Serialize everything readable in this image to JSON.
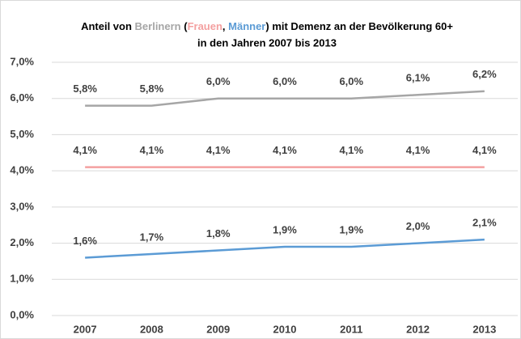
{
  "chart_data": {
    "type": "line",
    "title": [
      {
        "text": "Anteil von "
      },
      {
        "text": "Berlinern",
        "color": "#a6a6a6"
      },
      {
        "text": " ("
      },
      {
        "text": "Frauen",
        "color": "#f4a0a0"
      },
      {
        "text": ", "
      },
      {
        "text": "Männer",
        "color": "#5b9bd5"
      },
      {
        "text": ") mit Demenz an der Bevölkerung 60+"
      }
    ],
    "subtitle": "in den Jahren 2007 bis 2013",
    "categories": [
      "2007",
      "2008",
      "2009",
      "2010",
      "2011",
      "2012",
      "2013"
    ],
    "series": [
      {
        "color": "#a6a6a6",
        "values": [
          5.8,
          5.8,
          6.0,
          6.0,
          6.0,
          6.1,
          6.2
        ],
        "value_labels": [
          "5,8%",
          "5,8%",
          "6,0%",
          "6,0%",
          "6,0%",
          "6,1%",
          "6,2%"
        ]
      },
      {
        "color": "#f4a0a0",
        "values": [
          4.1,
          4.1,
          4.1,
          4.1,
          4.1,
          4.1,
          4.1
        ],
        "value_labels": [
          "4,1%",
          "4,1%",
          "4,1%",
          "4,1%",
          "4,1%",
          "4,1%",
          "4,1%"
        ]
      },
      {
        "color": "#5b9bd5",
        "values": [
          1.6,
          1.7,
          1.8,
          1.9,
          1.9,
          2.0,
          2.1
        ],
        "value_labels": [
          "1,6%",
          "1,7%",
          "1,8%",
          "1,9%",
          "1,9%",
          "2,0%",
          "2,1%"
        ]
      }
    ],
    "ylim": [
      0,
      7
    ],
    "yticks": [
      {
        "value": 0,
        "label": "0,0%"
      },
      {
        "value": 1,
        "label": "1,0%"
      },
      {
        "value": 2,
        "label": "2,0%"
      },
      {
        "value": 3,
        "label": "3,0%"
      },
      {
        "value": 4,
        "label": "4,0%"
      },
      {
        "value": 5,
        "label": "5,0%"
      },
      {
        "value": 6,
        "label": "6,0%"
      },
      {
        "value": 7,
        "label": "7,0%"
      }
    ],
    "grid": true
  }
}
